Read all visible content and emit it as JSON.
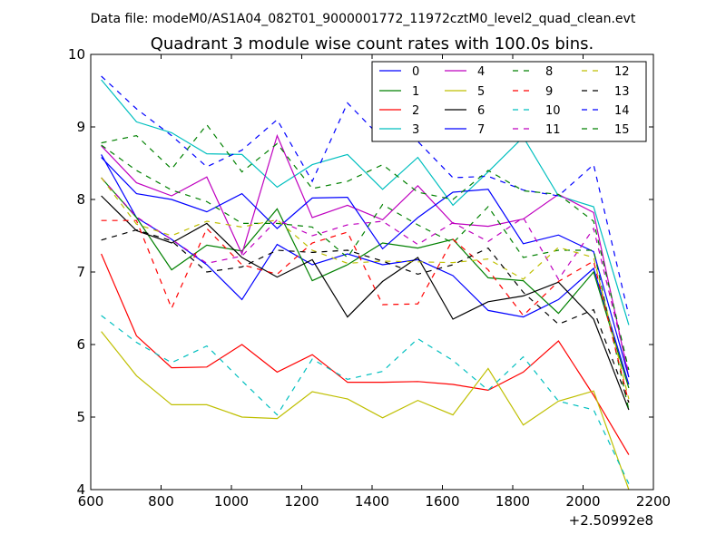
{
  "chart_data": {
    "type": "line",
    "suptitle": "Data file: modeM0/AS1A04_082T01_9000001772_11972cztM0_level2_quad_clean.evt",
    "title": "Quadrant 3 module wise count rates with 100.0s bins.",
    "xlabel": "",
    "ylabel": "",
    "x_offset_label": "+2.50992e8",
    "xlim": [
      600,
      2200
    ],
    "ylim": [
      4,
      10
    ],
    "xticks": [
      600,
      800,
      1000,
      1200,
      1400,
      1600,
      1800,
      2000,
      2200
    ],
    "yticks": [
      4,
      5,
      6,
      7,
      8,
      9,
      10
    ],
    "grid": false,
    "legend_position": "top-right",
    "x": [
      630,
      730,
      830,
      930,
      1030,
      1130,
      1230,
      1330,
      1430,
      1530,
      1630,
      1730,
      1830,
      1930,
      2030,
      2130
    ],
    "series": [
      {
        "name": "0",
        "color": "#0000ff",
        "dash": "solid",
        "values": [
          8.62,
          7.75,
          7.45,
          7.1,
          6.62,
          7.38,
          7.1,
          7.25,
          7.1,
          7.17,
          6.95,
          6.47,
          6.38,
          6.62,
          7.05,
          5.45
        ]
      },
      {
        "name": "1",
        "color": "#008000",
        "dash": "solid",
        "values": [
          8.3,
          7.75,
          7.03,
          7.37,
          7.29,
          7.87,
          6.88,
          7.1,
          7.4,
          7.33,
          7.45,
          6.92,
          6.88,
          6.43,
          7.0,
          5.4
        ]
      },
      {
        "name": "2",
        "color": "#ff0000",
        "dash": "solid",
        "values": [
          7.25,
          6.12,
          5.68,
          5.69,
          6.0,
          5.62,
          5.86,
          5.48,
          5.48,
          5.49,
          5.45,
          5.37,
          5.62,
          6.05,
          5.3,
          4.48
        ]
      },
      {
        "name": "3",
        "color": "#00bfbf",
        "dash": "solid",
        "values": [
          9.65,
          9.07,
          8.92,
          8.63,
          8.62,
          8.17,
          8.48,
          8.62,
          8.14,
          8.58,
          7.92,
          8.38,
          8.86,
          8.05,
          7.9,
          6.27
        ]
      },
      {
        "name": "4",
        "color": "#bf00bf",
        "dash": "solid",
        "values": [
          8.74,
          8.23,
          8.05,
          8.31,
          7.25,
          8.88,
          7.75,
          7.92,
          7.72,
          8.19,
          7.67,
          7.63,
          7.73,
          8.07,
          7.82,
          5.55
        ]
      },
      {
        "name": "5",
        "color": "#bfbf00",
        "dash": "solid",
        "values": [
          6.18,
          5.57,
          5.17,
          5.17,
          5.0,
          4.98,
          5.35,
          5.25,
          4.99,
          5.23,
          5.03,
          5.67,
          4.89,
          5.22,
          5.36,
          4.0
        ]
      },
      {
        "name": "6",
        "color": "#000000",
        "dash": "solid",
        "values": [
          8.05,
          7.57,
          7.4,
          7.67,
          7.2,
          6.93,
          7.17,
          6.38,
          6.87,
          7.2,
          6.35,
          6.59,
          6.67,
          6.86,
          6.35,
          5.1
        ]
      },
      {
        "name": "7",
        "color": "#0000ff",
        "dash": "solid",
        "values": [
          8.58,
          8.08,
          8.0,
          7.83,
          8.08,
          7.6,
          8.02,
          8.03,
          7.32,
          7.75,
          8.1,
          8.14,
          7.39,
          7.51,
          7.28,
          5.55
        ]
      },
      {
        "name": "8",
        "color": "#008000",
        "dash": "dashed",
        "values": [
          8.75,
          8.4,
          8.13,
          7.97,
          7.67,
          7.67,
          7.62,
          7.2,
          7.93,
          7.65,
          7.4,
          7.9,
          7.2,
          7.3,
          7.3,
          5.1
        ]
      },
      {
        "name": "9",
        "color": "#ff0000",
        "dash": "dashed",
        "values": [
          7.71,
          7.71,
          6.5,
          7.6,
          7.1,
          6.97,
          7.4,
          7.55,
          6.55,
          6.56,
          7.45,
          7.03,
          6.4,
          6.87,
          7.15,
          5.2
        ]
      },
      {
        "name": "10",
        "color": "#00bfbf",
        "dash": "dashed",
        "values": [
          6.4,
          6.03,
          5.75,
          5.98,
          5.5,
          5.03,
          5.8,
          5.52,
          5.63,
          6.08,
          5.78,
          5.37,
          5.83,
          5.22,
          5.1,
          4.08
        ]
      },
      {
        "name": "11",
        "color": "#bf00bf",
        "dash": "dashed",
        "values": [
          8.3,
          7.76,
          7.45,
          7.12,
          7.22,
          7.72,
          7.5,
          7.65,
          7.7,
          7.38,
          7.68,
          7.42,
          7.75,
          6.9,
          7.6,
          5.6
        ]
      },
      {
        "name": "12",
        "color": "#bfbf00",
        "dash": "dashed",
        "values": [
          8.3,
          7.66,
          7.5,
          7.7,
          7.62,
          7.72,
          7.3,
          7.12,
          7.15,
          7.14,
          7.13,
          7.18,
          6.9,
          7.34,
          7.2,
          5.25
        ]
      },
      {
        "name": "13",
        "color": "#000000",
        "dash": "dashed",
        "values": [
          7.44,
          7.58,
          7.43,
          7.0,
          7.07,
          7.3,
          7.27,
          7.3,
          7.15,
          6.97,
          7.1,
          7.33,
          6.72,
          6.28,
          6.48,
          5.2
        ]
      },
      {
        "name": "14",
        "color": "#0000ff",
        "dash": "dashed",
        "values": [
          9.7,
          9.25,
          8.88,
          8.45,
          8.68,
          9.1,
          8.25,
          9.33,
          8.83,
          8.8,
          8.3,
          8.32,
          8.13,
          8.05,
          8.48,
          6.4
        ]
      },
      {
        "name": "15",
        "color": "#008000",
        "dash": "dashed",
        "values": [
          8.78,
          8.88,
          8.42,
          9.03,
          8.38,
          8.77,
          8.15,
          8.25,
          8.48,
          8.1,
          8.0,
          8.4,
          8.12,
          8.07,
          7.7,
          5.65
        ]
      }
    ]
  }
}
